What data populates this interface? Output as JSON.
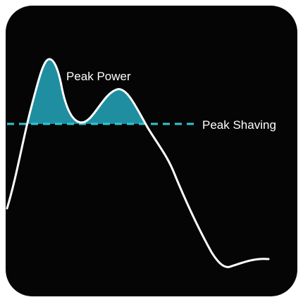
{
  "labels": {
    "peak_power": "Peak Power",
    "peak_shaving": "Peak Shaving"
  },
  "colors": {
    "background": "#050505",
    "curve": "#ffffff",
    "threshold_line": "#2fc7d3",
    "peak_fill": "#1f8ea0"
  }
}
